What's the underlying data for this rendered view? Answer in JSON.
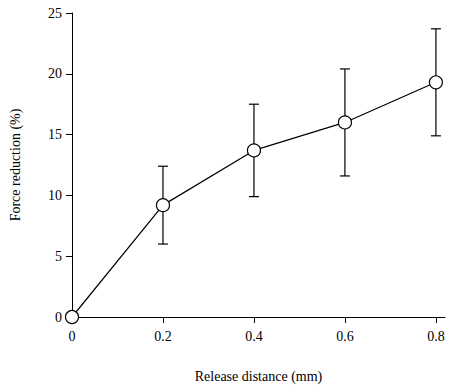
{
  "chart_data": {
    "type": "line",
    "x_label": "Release distance (mm)",
    "y_label": "Force reduction (%)",
    "x": [
      0,
      0.2,
      0.4,
      0.6,
      0.8
    ],
    "values": [
      0,
      9.2,
      13.7,
      16.0,
      19.3
    ],
    "errors": [
      null,
      3.2,
      3.8,
      4.4,
      4.4
    ],
    "color": "#000000",
    "marker": "circle",
    "xlim": [
      0,
      0.82
    ],
    "xticks": [
      0,
      0.2,
      0.4,
      0.6,
      0.8
    ],
    "ylim": [
      0,
      25
    ],
    "yticks": [
      0,
      5,
      10,
      15,
      20,
      25
    ],
    "grid": false
  }
}
